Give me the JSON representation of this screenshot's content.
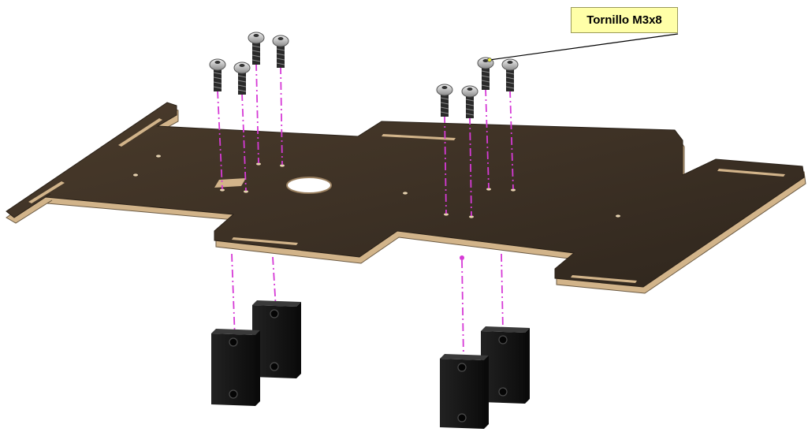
{
  "callout": {
    "label": "Tornillo M3x8"
  },
  "colors": {
    "plate_top": "#3f3326",
    "plate_edge": "#d2b48a",
    "axis_line": "#d63ad6",
    "spacer_block": "#151515",
    "callout_fill": "#ffffa8"
  },
  "parts": {
    "screw_count": 8,
    "spacer_count": 4,
    "spacer_name": "spacer-block"
  }
}
